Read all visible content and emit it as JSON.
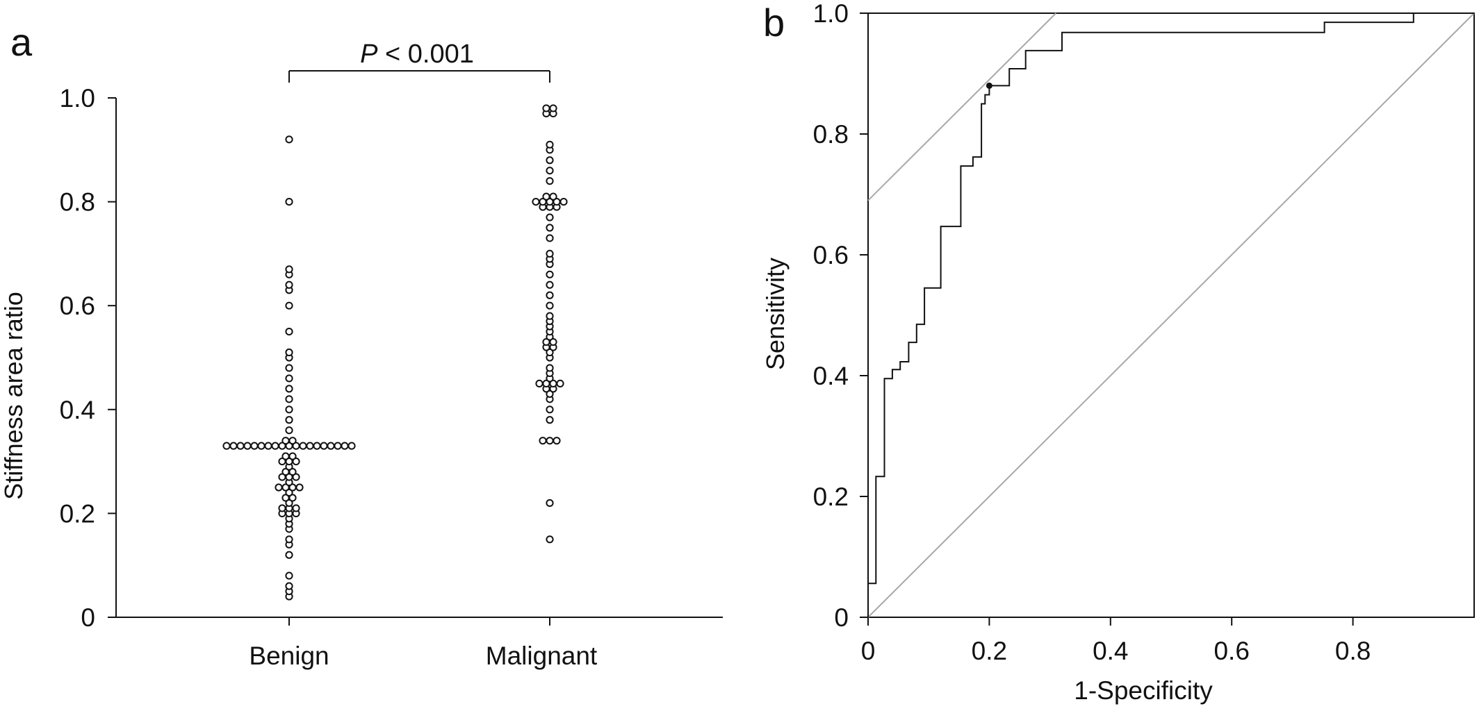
{
  "chart_data": [
    {
      "panel_label": "a",
      "type": "scatter",
      "categories": [
        "Benign",
        "Malignant"
      ],
      "ylabel": "Stiffness area ratio",
      "ylim": [
        0,
        1.0
      ],
      "yticks": [
        "0",
        "0.2",
        "0.4",
        "0.6",
        "0.8",
        "1.0"
      ],
      "significance": {
        "italic": "P",
        "text": " < 0.001"
      },
      "series": [
        {
          "values": [
            0.92,
            0.8,
            0.67,
            0.66,
            0.64,
            0.63,
            0.6,
            0.55,
            0.51,
            0.5,
            0.48,
            0.46,
            0.44,
            0.42,
            0.4,
            0.38,
            0.36,
            0.34,
            0.34,
            0.33,
            0.33,
            0.33,
            0.33,
            0.33,
            0.33,
            0.33,
            0.33,
            0.33,
            0.33,
            0.33,
            0.33,
            0.33,
            0.33,
            0.33,
            0.33,
            0.33,
            0.33,
            0.33,
            0.31,
            0.31,
            0.3,
            0.3,
            0.3,
            0.29,
            0.28,
            0.28,
            0.27,
            0.27,
            0.27,
            0.26,
            0.25,
            0.25,
            0.25,
            0.25,
            0.24,
            0.23,
            0.23,
            0.22,
            0.21,
            0.21,
            0.21,
            0.2,
            0.2,
            0.2,
            0.19,
            0.18,
            0.17,
            0.15,
            0.14,
            0.12,
            0.08,
            0.06,
            0.05,
            0.04
          ]
        },
        {
          "values": [
            0.98,
            0.98,
            0.97,
            0.97,
            0.91,
            0.9,
            0.88,
            0.86,
            0.84,
            0.81,
            0.81,
            0.8,
            0.8,
            0.8,
            0.8,
            0.8,
            0.79,
            0.79,
            0.79,
            0.77,
            0.75,
            0.73,
            0.7,
            0.69,
            0.68,
            0.66,
            0.64,
            0.62,
            0.6,
            0.58,
            0.57,
            0.56,
            0.55,
            0.54,
            0.53,
            0.53,
            0.52,
            0.52,
            0.51,
            0.5,
            0.48,
            0.47,
            0.46,
            0.45,
            0.45,
            0.45,
            0.45,
            0.44,
            0.44,
            0.43,
            0.42,
            0.4,
            0.38,
            0.34,
            0.34,
            0.34,
            0.22,
            0.15
          ]
        }
      ]
    },
    {
      "panel_label": "b",
      "type": "line",
      "xlabel": "1-Specificity",
      "ylabel": "Sensitivity",
      "xlim": [
        0,
        1.0
      ],
      "ylim": [
        0,
        1.0
      ],
      "xticks": [
        "0",
        "0.2",
        "0.4",
        "0.6",
        "0.8"
      ],
      "yticks": [
        "0",
        "0.2",
        "0.4",
        "0.6",
        "0.8",
        "1.0"
      ],
      "roc_points": [
        [
          0,
          0
        ],
        [
          0,
          0.056
        ],
        [
          0.013,
          0.056
        ],
        [
          0.013,
          0.233
        ],
        [
          0.027,
          0.233
        ],
        [
          0.027,
          0.395
        ],
        [
          0.04,
          0.395
        ],
        [
          0.04,
          0.41
        ],
        [
          0.053,
          0.41
        ],
        [
          0.053,
          0.423
        ],
        [
          0.067,
          0.423
        ],
        [
          0.067,
          0.455
        ],
        [
          0.08,
          0.455
        ],
        [
          0.08,
          0.485
        ],
        [
          0.093,
          0.485
        ],
        [
          0.093,
          0.545
        ],
        [
          0.12,
          0.545
        ],
        [
          0.12,
          0.647
        ],
        [
          0.153,
          0.647
        ],
        [
          0.153,
          0.747
        ],
        [
          0.173,
          0.747
        ],
        [
          0.173,
          0.762
        ],
        [
          0.187,
          0.762
        ],
        [
          0.187,
          0.85
        ],
        [
          0.193,
          0.85
        ],
        [
          0.193,
          0.865
        ],
        [
          0.2,
          0.865
        ],
        [
          0.2,
          0.88
        ],
        [
          0.233,
          0.88
        ],
        [
          0.233,
          0.908
        ],
        [
          0.26,
          0.908
        ],
        [
          0.26,
          0.938
        ],
        [
          0.32,
          0.938
        ],
        [
          0.32,
          0.968
        ],
        [
          0.753,
          0.968
        ],
        [
          0.753,
          0.985
        ],
        [
          0.9,
          0.985
        ],
        [
          0.9,
          1.0
        ],
        [
          1.0,
          1.0
        ]
      ],
      "cutoff_point": [
        0.2,
        0.88
      ],
      "reference_lines": [
        {
          "from": [
            0,
            0
          ],
          "to": [
            1.0,
            1.0
          ]
        },
        {
          "from": [
            0,
            0.69
          ],
          "to": [
            0.31,
            1.0
          ]
        }
      ]
    }
  ]
}
